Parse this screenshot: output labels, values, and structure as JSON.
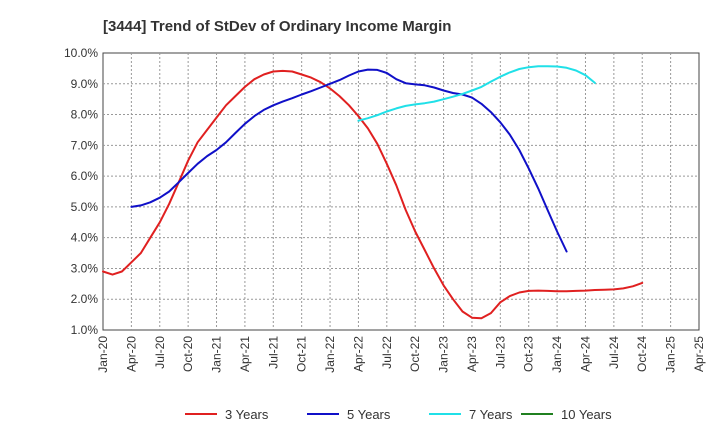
{
  "chart_data": {
    "type": "line",
    "title": "[3444]  Trend of StDev of Ordinary Income Margin",
    "xlabel": "",
    "ylabel": "",
    "x_ticks": [
      "Jan-20",
      "Apr-20",
      "Jul-20",
      "Oct-20",
      "Jan-21",
      "Apr-21",
      "Jul-21",
      "Oct-21",
      "Jan-22",
      "Apr-22",
      "Jul-22",
      "Oct-22",
      "Jan-23",
      "Apr-23",
      "Jul-23",
      "Oct-23",
      "Jan-24",
      "Apr-24",
      "Jul-24",
      "Oct-24",
      "Jan-25",
      "Apr-25"
    ],
    "y_ticks": [
      "1.0%",
      "2.0%",
      "3.0%",
      "4.0%",
      "5.0%",
      "6.0%",
      "7.0%",
      "8.0%",
      "9.0%",
      "10.0%"
    ],
    "ylim": [
      1.0,
      10.0
    ],
    "grid": "both-dashed",
    "legend_position": "bottom",
    "series": [
      {
        "name": "3 Years",
        "color": "#e02020",
        "points": [
          [
            "Jan-20",
            2.9
          ],
          [
            "Feb-20",
            2.8
          ],
          [
            "Mar-20",
            2.9
          ],
          [
            "Apr-20",
            3.2
          ],
          [
            "May-20",
            3.5
          ],
          [
            "Jun-20",
            4.0
          ],
          [
            "Jul-20",
            4.5
          ],
          [
            "Aug-20",
            5.1
          ],
          [
            "Sep-20",
            5.8
          ],
          [
            "Oct-20",
            6.5
          ],
          [
            "Nov-20",
            7.1
          ],
          [
            "Dec-20",
            7.5
          ],
          [
            "Jan-21",
            7.9
          ],
          [
            "Feb-21",
            8.3
          ],
          [
            "Mar-21",
            8.6
          ],
          [
            "Apr-21",
            8.9
          ],
          [
            "May-21",
            9.15
          ],
          [
            "Jun-21",
            9.3
          ],
          [
            "Jul-21",
            9.4
          ],
          [
            "Aug-21",
            9.42
          ],
          [
            "Sep-21",
            9.4
          ],
          [
            "Oct-21",
            9.3
          ],
          [
            "Nov-21",
            9.2
          ],
          [
            "Dec-21",
            9.05
          ],
          [
            "Jan-22",
            8.85
          ],
          [
            "Feb-22",
            8.6
          ],
          [
            "Mar-22",
            8.3
          ],
          [
            "Apr-22",
            7.95
          ],
          [
            "May-22",
            7.55
          ],
          [
            "Jun-22",
            7.05
          ],
          [
            "Jul-22",
            6.4
          ],
          [
            "Aug-22",
            5.7
          ],
          [
            "Sep-22",
            4.9
          ],
          [
            "Oct-22",
            4.2
          ],
          [
            "Nov-22",
            3.6
          ],
          [
            "Dec-22",
            3.0
          ],
          [
            "Jan-23",
            2.45
          ],
          [
            "Feb-23",
            2.0
          ],
          [
            "Mar-23",
            1.6
          ],
          [
            "Apr-23",
            1.4
          ],
          [
            "May-23",
            1.38
          ],
          [
            "Jun-23",
            1.55
          ],
          [
            "Jul-23",
            1.9
          ],
          [
            "Aug-23",
            2.1
          ],
          [
            "Sep-23",
            2.22
          ],
          [
            "Oct-23",
            2.27
          ],
          [
            "Nov-23",
            2.28
          ],
          [
            "Dec-23",
            2.27
          ],
          [
            "Jan-24",
            2.26
          ],
          [
            "Feb-24",
            2.26
          ],
          [
            "Mar-24",
            2.27
          ],
          [
            "Apr-24",
            2.28
          ],
          [
            "May-24",
            2.3
          ],
          [
            "Jun-24",
            2.31
          ],
          [
            "Jul-24",
            2.32
          ],
          [
            "Aug-24",
            2.35
          ],
          [
            "Sep-24",
            2.42
          ],
          [
            "Oct-24",
            2.53
          ]
        ]
      },
      {
        "name": "5 Years",
        "color": "#1010c8",
        "points": [
          [
            "Apr-20",
            5.0
          ],
          [
            "May-20",
            5.05
          ],
          [
            "Jun-20",
            5.15
          ],
          [
            "Jul-20",
            5.3
          ],
          [
            "Aug-20",
            5.5
          ],
          [
            "Sep-20",
            5.8
          ],
          [
            "Oct-20",
            6.1
          ],
          [
            "Nov-20",
            6.4
          ],
          [
            "Dec-20",
            6.65
          ],
          [
            "Jan-21",
            6.85
          ],
          [
            "Feb-21",
            7.1
          ],
          [
            "Mar-21",
            7.4
          ],
          [
            "Apr-21",
            7.7
          ],
          [
            "May-21",
            7.95
          ],
          [
            "Jun-21",
            8.15
          ],
          [
            "Jul-21",
            8.3
          ],
          [
            "Aug-21",
            8.42
          ],
          [
            "Sep-21",
            8.53
          ],
          [
            "Oct-21",
            8.65
          ],
          [
            "Nov-21",
            8.76
          ],
          [
            "Dec-21",
            8.88
          ],
          [
            "Jan-22",
            9.0
          ],
          [
            "Feb-22",
            9.12
          ],
          [
            "Mar-22",
            9.27
          ],
          [
            "Apr-22",
            9.4
          ],
          [
            "May-22",
            9.46
          ],
          [
            "Jun-22",
            9.45
          ],
          [
            "Jul-22",
            9.35
          ],
          [
            "Aug-22",
            9.15
          ],
          [
            "Sep-22",
            9.02
          ],
          [
            "Oct-22",
            8.98
          ],
          [
            "Nov-22",
            8.95
          ],
          [
            "Dec-22",
            8.88
          ],
          [
            "Jan-23",
            8.78
          ],
          [
            "Feb-23",
            8.7
          ],
          [
            "Mar-23",
            8.65
          ],
          [
            "Apr-23",
            8.55
          ],
          [
            "May-23",
            8.35
          ],
          [
            "Jun-23",
            8.08
          ],
          [
            "Jul-23",
            7.75
          ],
          [
            "Aug-23",
            7.35
          ],
          [
            "Sep-23",
            6.85
          ],
          [
            "Oct-23",
            6.25
          ],
          [
            "Nov-23",
            5.6
          ],
          [
            "Dec-23",
            4.9
          ],
          [
            "Jan-24",
            4.2
          ],
          [
            "Feb-24",
            3.55
          ]
        ]
      },
      {
        "name": "7 Years",
        "color": "#20e0e8",
        "points": [
          [
            "Apr-22",
            7.8
          ],
          [
            "May-22",
            7.88
          ],
          [
            "Jun-22",
            7.98
          ],
          [
            "Jul-22",
            8.1
          ],
          [
            "Aug-22",
            8.2
          ],
          [
            "Sep-22",
            8.28
          ],
          [
            "Oct-22",
            8.33
          ],
          [
            "Nov-22",
            8.37
          ],
          [
            "Dec-22",
            8.42
          ],
          [
            "Jan-23",
            8.5
          ],
          [
            "Feb-23",
            8.58
          ],
          [
            "Mar-23",
            8.67
          ],
          [
            "Apr-23",
            8.78
          ],
          [
            "May-23",
            8.9
          ],
          [
            "Jun-23",
            9.07
          ],
          [
            "Jul-23",
            9.23
          ],
          [
            "Aug-23",
            9.37
          ],
          [
            "Sep-23",
            9.48
          ],
          [
            "Oct-23",
            9.54
          ],
          [
            "Nov-23",
            9.57
          ],
          [
            "Dec-23",
            9.57
          ],
          [
            "Jan-24",
            9.56
          ],
          [
            "Feb-24",
            9.52
          ],
          [
            "Mar-24",
            9.43
          ],
          [
            "Apr-24",
            9.28
          ],
          [
            "May-24",
            9.03
          ]
        ]
      },
      {
        "name": "10 Years",
        "color": "#208020",
        "points": []
      }
    ]
  }
}
